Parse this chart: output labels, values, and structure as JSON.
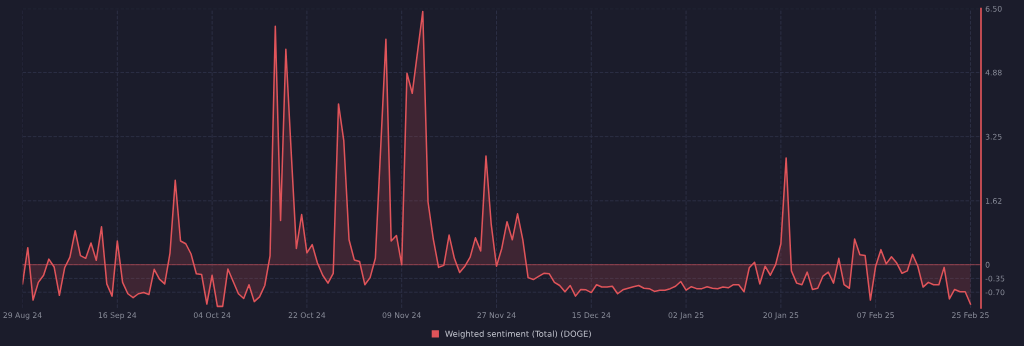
{
  "chart_data": {
    "type": "area",
    "legend": "bottom",
    "grid": true,
    "line_style": "solid",
    "ref_lines": [
      {
        "axis": "y",
        "value": 0,
        "color": "#e0545a"
      }
    ],
    "xlim": [
      "2024-08-29",
      "2025-02-27"
    ],
    "xticks": [
      {
        "value": "2024-08-29",
        "label": "29 Aug 24"
      },
      {
        "value": "2024-09-16",
        "label": "16 Sep 24"
      },
      {
        "value": "2024-10-04",
        "label": "04 Oct 24"
      },
      {
        "value": "2024-10-22",
        "label": "22 Oct 24"
      },
      {
        "value": "2024-11-09",
        "label": "09 Nov 24"
      },
      {
        "value": "2024-11-27",
        "label": "27 Nov 24"
      },
      {
        "value": "2024-12-15",
        "label": "15 Dec 24"
      },
      {
        "value": "2025-01-02",
        "label": "02 Jan 25"
      },
      {
        "value": "2025-01-20",
        "label": "20 Jan 25"
      },
      {
        "value": "2025-02-07",
        "label": "07 Feb 25"
      },
      {
        "value": "2025-02-25",
        "label": "25 Feb 25"
      }
    ],
    "ylim": [
      -1.1,
      6.5
    ],
    "yticks": [
      {
        "value": -0.7,
        "label": "-0.70"
      },
      -0.35,
      0,
      1.62,
      3.25,
      4.88,
      {
        "value": 6.5,
        "label": "6.50"
      }
    ],
    "x": [
      "2024-08-29",
      "2024-08-30",
      "2024-08-31",
      "2024-09-01",
      "2024-09-02",
      "2024-09-03",
      "2024-09-04",
      "2024-09-05",
      "2024-09-06",
      "2024-09-07",
      "2024-09-08",
      "2024-09-09",
      "2024-09-10",
      "2024-09-11",
      "2024-09-12",
      "2024-09-13",
      "2024-09-14",
      "2024-09-15",
      "2024-09-16",
      "2024-09-17",
      "2024-09-18",
      "2024-09-19",
      "2024-09-20",
      "2024-09-21",
      "2024-09-22",
      "2024-09-23",
      "2024-09-24",
      "2024-09-25",
      "2024-09-26",
      "2024-09-27",
      "2024-09-28",
      "2024-09-29",
      "2024-09-30",
      "2024-10-01",
      "2024-10-02",
      "2024-10-03",
      "2024-10-04",
      "2024-10-05",
      "2024-10-06",
      "2024-10-07",
      "2024-10-08",
      "2024-10-09",
      "2024-10-10",
      "2024-10-11",
      "2024-10-12",
      "2024-10-13",
      "2024-10-14",
      "2024-10-15",
      "2024-10-16",
      "2024-10-17",
      "2024-10-18",
      "2024-10-19",
      "2024-10-20",
      "2024-10-21",
      "2024-10-22",
      "2024-10-23",
      "2024-10-24",
      "2024-10-25",
      "2024-10-26",
      "2024-10-27",
      "2024-10-28",
      "2024-10-29",
      "2024-10-30",
      "2024-10-31",
      "2024-11-01",
      "2024-11-02",
      "2024-11-03",
      "2024-11-04",
      "2024-11-06",
      "2024-11-07",
      "2024-11-08",
      "2024-11-09",
      "2024-11-10",
      "2024-11-11",
      "2024-11-13",
      "2024-11-14",
      "2024-11-15",
      "2024-11-16",
      "2024-11-17",
      "2024-11-18",
      "2024-11-19",
      "2024-11-20",
      "2024-11-21",
      "2024-11-22",
      "2024-11-23",
      "2024-11-24",
      "2024-11-25",
      "2024-11-26",
      "2024-11-27",
      "2024-11-28",
      "2024-11-29",
      "2024-11-30",
      "2024-12-01",
      "2024-12-02",
      "2024-12-03",
      "2024-12-04",
      "2024-12-05",
      "2024-12-06",
      "2024-12-07",
      "2024-12-08",
      "2024-12-09",
      "2024-12-10",
      "2024-12-11",
      "2024-12-12",
      "2024-12-13",
      "2024-12-14",
      "2024-12-15",
      "2024-12-16",
      "2024-12-17",
      "2024-12-18",
      "2024-12-19",
      "2024-12-20",
      "2024-12-21",
      "2024-12-22",
      "2024-12-23",
      "2024-12-24",
      "2024-12-25",
      "2024-12-26",
      "2024-12-27",
      "2024-12-28",
      "2024-12-29",
      "2024-12-30",
      "2024-12-31",
      "2025-01-01",
      "2025-01-02",
      "2025-01-03",
      "2025-01-04",
      "2025-01-05",
      "2025-01-06",
      "2025-01-07",
      "2025-01-08",
      "2025-01-09",
      "2025-01-10",
      "2025-01-11",
      "2025-01-12",
      "2025-01-13",
      "2025-01-14",
      "2025-01-15",
      "2025-01-16",
      "2025-01-17",
      "2025-01-18",
      "2025-01-19",
      "2025-01-20",
      "2025-01-21",
      "2025-01-22",
      "2025-01-23",
      "2025-01-24",
      "2025-01-25",
      "2025-01-26",
      "2025-01-27",
      "2025-01-28",
      "2025-01-29",
      "2025-01-30",
      "2025-01-31",
      "2025-02-01",
      "2025-02-02",
      "2025-02-03",
      "2025-02-04",
      "2025-02-05",
      "2025-02-06",
      "2025-02-07",
      "2025-02-08",
      "2025-02-09",
      "2025-02-10",
      "2025-02-11",
      "2025-02-12",
      "2025-02-13",
      "2025-02-14",
      "2025-02-15",
      "2025-02-16",
      "2025-02-17",
      "2025-02-18",
      "2025-02-19",
      "2025-02-20",
      "2025-02-21",
      "2025-02-22",
      "2025-02-23",
      "2025-02-24",
      "2025-02-25"
    ],
    "series": [
      {
        "name": "Weighted sentiment (Total) (DOGE)",
        "color": "#e0545a",
        "values": [
          -0.49,
          0.43,
          -0.9,
          -0.45,
          -0.27,
          0.14,
          -0.06,
          -0.78,
          -0.08,
          0.19,
          0.86,
          0.23,
          0.16,
          0.55,
          0.11,
          0.96,
          -0.49,
          -0.8,
          0.6,
          -0.45,
          -0.74,
          -0.84,
          -0.74,
          -0.71,
          -0.76,
          -0.12,
          -0.37,
          -0.49,
          0.29,
          2.14,
          0.6,
          0.53,
          0.27,
          -0.23,
          -0.25,
          -1.0,
          -0.27,
          -1.06,
          -1.06,
          -0.11,
          -0.43,
          -0.74,
          -0.86,
          -0.51,
          -0.94,
          -0.82,
          -0.53,
          0.22,
          6.05,
          1.12,
          5.47,
          2.9,
          0.41,
          1.27,
          0.3,
          0.51,
          0.04,
          -0.27,
          -0.47,
          -0.22,
          4.08,
          3.15,
          0.63,
          0.12,
          0.08,
          -0.51,
          -0.33,
          0.16,
          5.72,
          0.6,
          0.74,
          0.0,
          4.86,
          4.35,
          6.43,
          1.59,
          0.65,
          -0.07,
          -0.02,
          0.75,
          0.16,
          -0.2,
          -0.04,
          0.19,
          0.68,
          0.35,
          2.76,
          1.02,
          -0.04,
          0.41,
          1.09,
          0.63,
          1.29,
          0.63,
          -0.33,
          -0.38,
          -0.3,
          -0.22,
          -0.23,
          -0.45,
          -0.53,
          -0.69,
          -0.53,
          -0.8,
          -0.63,
          -0.64,
          -0.71,
          -0.51,
          -0.57,
          -0.57,
          -0.55,
          -0.74,
          -0.64,
          -0.6,
          -0.56,
          -0.53,
          -0.6,
          -0.61,
          -0.68,
          -0.65,
          -0.65,
          -0.61,
          -0.55,
          -0.43,
          -0.65,
          -0.56,
          -0.61,
          -0.61,
          -0.56,
          -0.6,
          -0.61,
          -0.57,
          -0.59,
          -0.51,
          -0.51,
          -0.69,
          -0.08,
          0.06,
          -0.49,
          -0.04,
          -0.27,
          0.0,
          0.53,
          2.71,
          -0.16,
          -0.47,
          -0.51,
          -0.19,
          -0.63,
          -0.6,
          -0.29,
          -0.19,
          -0.47,
          0.16,
          -0.51,
          -0.6,
          0.65,
          0.25,
          0.23,
          -0.9,
          -0.04,
          0.38,
          0.02,
          0.2,
          0.04,
          -0.22,
          -0.16,
          0.26,
          -0.04,
          -0.57,
          -0.45,
          -0.51,
          -0.51,
          -0.07,
          -0.87,
          -0.63,
          -0.69,
          -0.69,
          -1.0
        ]
      }
    ]
  }
}
